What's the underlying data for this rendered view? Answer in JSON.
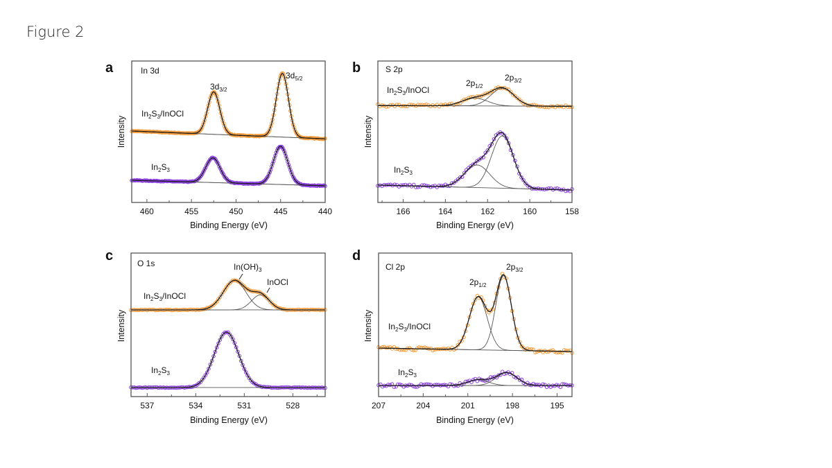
{
  "figure_title": "Figure 2",
  "colors": {
    "composite": "#f39a3a",
    "pristine": "#8a3fe0",
    "fit": "#1a1a1a",
    "component": "#555555",
    "frame": "#555555"
  },
  "chart_data": [
    {
      "type": "scatter",
      "panel": "a",
      "title": "In 3d",
      "xlabel": "Binding Energy (eV)",
      "ylabel": "Intensity",
      "xlim": [
        461.7,
        440
      ],
      "ylim": [
        0,
        100
      ],
      "xticks": [
        460,
        455,
        450,
        445,
        440
      ],
      "xtick_labels": [
        "460",
        "455",
        "450",
        "445",
        "440"
      ],
      "peak_labels": [
        {
          "main": "3d",
          "sub": "3/2"
        },
        {
          "main": "3d",
          "sub": "5/2"
        }
      ],
      "series": [
        {
          "name": "In2S3/InOCl",
          "color_key": "composite",
          "baseline": [
            50.5,
            45
          ],
          "peaks": [
            {
              "center": 452.5,
              "amp": 30,
              "sigma": 0.68
            },
            {
              "center": 444.8,
              "amp": 45,
              "sigma": 0.68
            }
          ]
        },
        {
          "name": "In2S3",
          "color_key": "pristine",
          "baseline": [
            15.7,
            11.8
          ],
          "peaks": [
            {
              "center": 452.6,
              "amp": 17.5,
              "sigma": 0.8
            },
            {
              "center": 445.0,
              "amp": 27,
              "sigma": 0.8
            }
          ]
        }
      ]
    },
    {
      "type": "scatter",
      "panel": "b",
      "title": "S 2p",
      "xlabel": "Binding Energy (eV)",
      "ylabel": "Intensity",
      "xlim": [
        167.2,
        158
      ],
      "ylim": [
        0,
        100
      ],
      "xticks": [
        166,
        164,
        162,
        160,
        158
      ],
      "xtick_labels": [
        "166",
        "164",
        "162",
        "160",
        "158"
      ],
      "peak_labels": [
        {
          "main": "2p",
          "sub": "1/2"
        },
        {
          "main": "2p",
          "sub": "3/2"
        }
      ],
      "series": [
        {
          "name": "In2S3/InOCl",
          "color_key": "composite",
          "baseline": [
            68.5,
            68
          ],
          "peaks": [
            {
              "center": 162.6,
              "amp": 5.5,
              "sigma": 0.6
            },
            {
              "center": 161.3,
              "amp": 12.5,
              "sigma": 0.55
            }
          ]
        },
        {
          "name": "In2S3",
          "color_key": "pristine",
          "baseline": [
            12.3,
            8.8
          ],
          "peaks": [
            {
              "center": 162.5,
              "amp": 16,
              "sigma": 0.6
            },
            {
              "center": 161.3,
              "amp": 37,
              "sigma": 0.52
            }
          ]
        }
      ]
    },
    {
      "type": "scatter",
      "panel": "c",
      "title": "O 1s",
      "xlabel": "Binding Energy (eV)",
      "ylabel": "Intensity",
      "xlim": [
        538,
        526
      ],
      "ylim": [
        0,
        100
      ],
      "xticks": [
        537,
        534,
        531,
        528
      ],
      "xtick_labels": [
        "537",
        "534",
        "531",
        "528"
      ],
      "peak_labels": [
        {
          "main": "In(OH)3",
          "sub": ""
        },
        {
          "main": "InOCl",
          "sub": ""
        }
      ],
      "series": [
        {
          "name": "In2S3/InOCl",
          "color_key": "composite",
          "baseline": [
            60.4,
            60.4
          ],
          "peaks": [
            {
              "center": 531.6,
              "amp": 20.5,
              "sigma": 0.7
            },
            {
              "center": 530.0,
              "amp": 10.5,
              "sigma": 0.55
            }
          ]
        },
        {
          "name": "In2S3",
          "color_key": "pristine",
          "baseline": [
            6.3,
            6.3
          ],
          "peaks": [
            {
              "center": 532.1,
              "amp": 38.6,
              "sigma": 0.75
            }
          ]
        }
      ]
    },
    {
      "type": "scatter",
      "panel": "d",
      "title": "Cl 2p",
      "xlabel": "Binding Energy (eV)",
      "ylabel": "Intensity",
      "xlim": [
        207,
        194
      ],
      "ylim": [
        0,
        100
      ],
      "xticks": [
        207,
        204,
        201,
        198,
        195
      ],
      "xtick_labels": [
        "207",
        "204",
        "201",
        "198",
        "195"
      ],
      "peak_labels": [
        {
          "main": "2p",
          "sub": "1/2"
        },
        {
          "main": "2p",
          "sub": "3/2"
        }
      ],
      "series": [
        {
          "name": "In2S3/InOCl",
          "color_key": "composite",
          "baseline": [
            33.8,
            31.4
          ],
          "peaks": [
            {
              "center": 200.3,
              "amp": 37,
              "sigma": 0.6
            },
            {
              "center": 198.6,
              "amp": 52,
              "sigma": 0.52
            }
          ]
        },
        {
          "name": "In2S3",
          "color_key": "pristine",
          "baseline": [
            7.7,
            7.7
          ],
          "peaks": [
            {
              "center": 200.3,
              "amp": 4,
              "sigma": 0.7
            },
            {
              "center": 198.4,
              "amp": 9,
              "sigma": 0.7
            }
          ]
        }
      ]
    }
  ]
}
